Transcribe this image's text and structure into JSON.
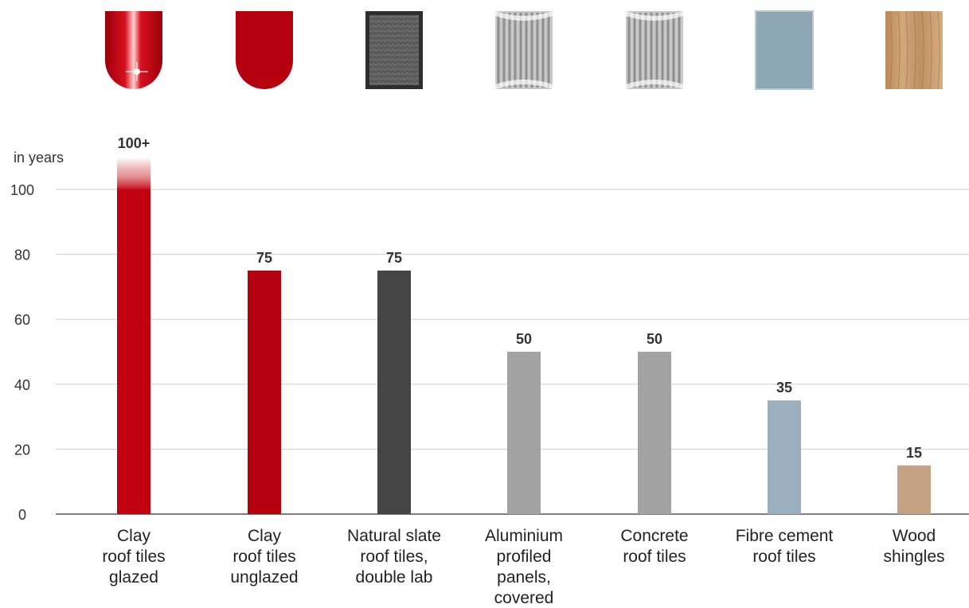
{
  "chart_data": {
    "type": "bar",
    "ylabel": "in years",
    "ylim": [
      0,
      100
    ],
    "yticks": [
      0,
      20,
      40,
      60,
      80,
      100
    ],
    "grid": true,
    "categories": [
      [
        "Clay",
        "roof tiles",
        "glazed"
      ],
      [
        "Clay",
        "roof tiles",
        "unglazed"
      ],
      [
        "Natural slate",
        "roof tiles,",
        "double lab"
      ],
      [
        "Aluminium",
        "profiled",
        "panels,",
        "covered"
      ],
      [
        "Concrete",
        "roof tiles"
      ],
      [
        "Fibre cement",
        "roof tiles"
      ],
      [
        "Wood",
        "shingles"
      ]
    ],
    "values": [
      100,
      75,
      75,
      50,
      50,
      35,
      15
    ],
    "value_labels": [
      "100+",
      "75",
      "75",
      "50",
      "50",
      "35",
      "15"
    ],
    "bar_colors": [
      "#c10010",
      "#b5000f",
      "#454545",
      "#a3a3a3",
      "#a3a3a3",
      "#9ab0bf",
      "#c4a283"
    ],
    "icons": [
      "glazed-clay-tile-icon",
      "unglazed-clay-tile-icon",
      "slate-tile-icon",
      "aluminium-panel-icon",
      "concrete-tile-icon",
      "fibre-cement-tile-icon",
      "wood-shingle-icon"
    ]
  }
}
